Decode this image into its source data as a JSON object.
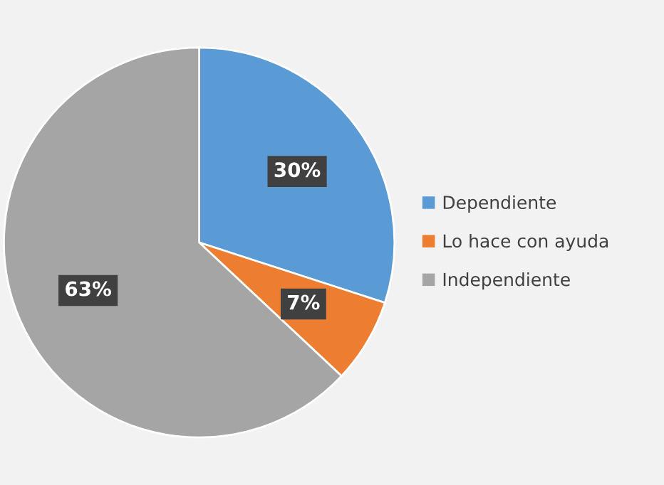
{
  "chart_data": {
    "type": "pie",
    "categories": [
      "Dependiente",
      "Lo hace con ayuda",
      "Independiente"
    ],
    "values": [
      30,
      7,
      63
    ],
    "colors": [
      "#5b9bd5",
      "#ed7d31",
      "#a5a5a5"
    ],
    "value_labels": [
      "30%",
      "7%",
      "63%"
    ],
    "legend": "right"
  }
}
